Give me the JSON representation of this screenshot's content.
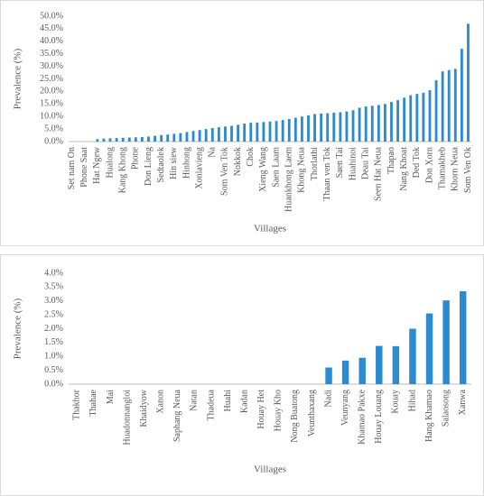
{
  "chart_data": [
    {
      "type": "bar",
      "y_label": "Prevalence (%)",
      "x_label": "Villages",
      "color": "#2b8ad0",
      "categories": [
        "Set nam On",
        null,
        "Phone Saat",
        null,
        "Hat Ngew",
        null,
        "Hualong",
        null,
        "Kang Khong",
        null,
        "Phone",
        null,
        "Don Lieng",
        null,
        "Sedtaolek",
        null,
        "Hin siew",
        null,
        "Hinhong",
        null,
        "Xonlavieng",
        null,
        "Na",
        null,
        "Som Ven Tok",
        null,
        "Nokkok",
        null,
        "Chok",
        null,
        "Xieng Wang",
        null,
        "Saen Laam",
        null,
        "Huankhong Laem",
        null,
        "Khong Neua",
        null,
        "Thorlathi",
        null,
        "Thaan ven Tok",
        null,
        "Saen Tai",
        null,
        "Huahinoi",
        null,
        "Deau Tai",
        null,
        "Seen Hat Neua",
        null,
        "Thapao",
        null,
        "Nang Khoat",
        null,
        "Ded Tok",
        null,
        "Don Xorn",
        null,
        "Thamakheb",
        null,
        "Khorn Neua",
        null,
        "Som Ven Ok"
      ],
      "values": [
        0,
        0,
        0,
        0,
        1.0,
        1.2,
        1.3,
        1.4,
        1.5,
        1.6,
        1.7,
        1.8,
        2.0,
        2.3,
        2.6,
        2.8,
        3.1,
        3.4,
        3.8,
        4.2,
        4.6,
        5.0,
        5.4,
        5.7,
        6.0,
        6.3,
        6.7,
        7.2,
        7.5,
        7.6,
        7.8,
        8.0,
        8.2,
        8.6,
        9.0,
        9.5,
        10.0,
        10.5,
        11.0,
        11.2,
        11.3,
        11.5,
        11.7,
        12.0,
        12.5,
        13.5,
        14.0,
        14.3,
        14.6,
        15.0,
        15.8,
        16.5,
        17.5,
        18.5,
        19.0,
        19.5,
        20.5,
        24.5,
        28.0,
        28.5,
        29.0,
        37.0,
        47.0
      ],
      "ylim": [
        0,
        50
      ],
      "yticks": [
        {
          "value": 0,
          "label": "0.0%"
        },
        {
          "value": 5,
          "label": "5.0%"
        },
        {
          "value": 10,
          "label": "10.0%"
        },
        {
          "value": 15,
          "label": "15.0%"
        },
        {
          "value": 20,
          "label": "20.0%"
        },
        {
          "value": 25,
          "label": "25.0%"
        },
        {
          "value": 30,
          "label": "30.0%"
        },
        {
          "value": 35,
          "label": "35.0%"
        },
        {
          "value": 40,
          "label": "40.0%"
        },
        {
          "value": 45,
          "label": "45.0%"
        },
        {
          "value": 50,
          "label": "50.0%"
        }
      ]
    },
    {
      "type": "bar",
      "y_label": "Prevalence (%)",
      "x_label": "Villages",
      "color": "#2b8ad0",
      "categories": [
        "Thakhor",
        "Thahae",
        "Mai",
        "Huadonnangloi",
        "Khaidyow",
        "Xanon",
        "Saphang Neua",
        "Natan",
        "Thadeua",
        "Huahi",
        "Kadan",
        "Houay Het",
        "Houay Kho",
        "Nong Buatong",
        "Veunthaxang",
        "Nadi",
        "Veunyang",
        "Khamao Pakxe",
        "Houay Louang",
        "Kouay",
        "Hihad",
        "Hang Khamao",
        "Salaosong",
        "Xanwa"
      ],
      "values": [
        0,
        0,
        0,
        0,
        0,
        0,
        0,
        0,
        0,
        0,
        0,
        0,
        0,
        0,
        0,
        0.6,
        0.85,
        0.95,
        1.38,
        1.37,
        2.0,
        2.55,
        3.02,
        3.35
      ],
      "ylim": [
        0,
        4
      ],
      "yticks": [
        {
          "value": 0,
          "label": "0.0%"
        },
        {
          "value": 0.5,
          "label": "0.5%"
        },
        {
          "value": 1,
          "label": "1.0%"
        },
        {
          "value": 1.5,
          "label": "1.5%"
        },
        {
          "value": 2,
          "label": "2.0%"
        },
        {
          "value": 2.5,
          "label": "2.5%"
        },
        {
          "value": 3,
          "label": "3.0%"
        },
        {
          "value": 3.5,
          "label": "3.5%"
        },
        {
          "value": 4,
          "label": "4.0%"
        }
      ]
    }
  ]
}
